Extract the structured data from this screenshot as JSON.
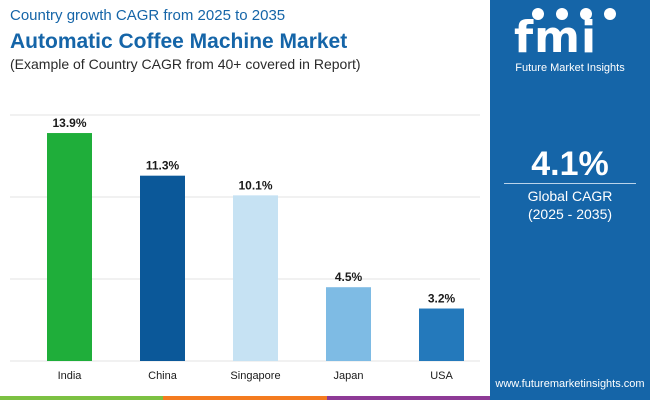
{
  "header": {
    "subtitle_top": "Country growth CAGR from 2025 to 2035",
    "title": "Automatic Coffee Machine Market",
    "subtitle_bottom": "(Example of Country CAGR from 40+ covered in Report)"
  },
  "sidebar": {
    "logo_letters": "fmi",
    "logo_text": "Future Market Insights",
    "cagr_value": "4.1%",
    "cagr_label": "Global CAGR",
    "cagr_period": "(2025 - 2035)",
    "website": "www.futuremarketinsights.com"
  },
  "colors": {
    "brand": "#1565a8",
    "footer": [
      "#7cc142",
      "#f47b20",
      "#8e3a96"
    ]
  },
  "chart_data": {
    "type": "bar",
    "categories": [
      "India",
      "China",
      "Singapore",
      "Japan",
      "USA"
    ],
    "values": [
      13.9,
      11.3,
      10.1,
      4.5,
      3.2
    ],
    "value_labels": [
      "13.9%",
      "11.3%",
      "10.1%",
      "4.5%",
      "3.2%"
    ],
    "bar_colors": [
      "#1fae3a",
      "#0b5899",
      "#c6e2f3",
      "#7ebbe4",
      "#2479bb"
    ],
    "ylim": [
      0,
      15
    ],
    "grid": true,
    "gridlines": [
      0,
      5,
      10,
      15
    ],
    "title": "",
    "xlabel": "",
    "ylabel": ""
  }
}
